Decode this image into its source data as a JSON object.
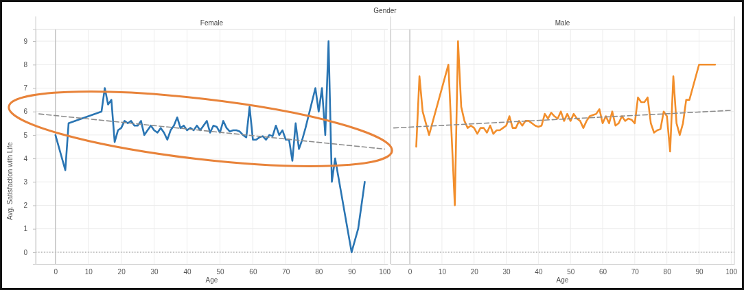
{
  "chart_data": [
    {
      "type": "line",
      "title": "Gender",
      "subtitle": "Female",
      "xlabel": "Age",
      "ylabel": "Avg. Satisfaction with Life",
      "xlim": [
        -6,
        101
      ],
      "xticks": [
        0,
        10,
        20,
        30,
        40,
        50,
        60,
        70,
        80,
        90,
        100
      ],
      "ylim": [
        -0.5,
        9.5
      ],
      "yticks": [
        0,
        1,
        2,
        3,
        4,
        5,
        6,
        7,
        8,
        9
      ],
      "grid": true,
      "marker": "none",
      "ref_lines": [
        {
          "axis": "y",
          "value": 0,
          "line_style": "dotted",
          "color": "#999999"
        },
        {
          "axis": "x",
          "value": 0,
          "line_style": "solid",
          "color": "#bbbbbb"
        }
      ],
      "series": [
        {
          "color": "#2a75b3",
          "line_style": "solid",
          "x": [
            0,
            3,
            4,
            14,
            15,
            16,
            17,
            18,
            19,
            20,
            21,
            22,
            23,
            24,
            25,
            26,
            27,
            28,
            29,
            30,
            31,
            32,
            33,
            34,
            35,
            36,
            37,
            38,
            39,
            40,
            41,
            42,
            43,
            44,
            45,
            46,
            47,
            48,
            49,
            50,
            51,
            52,
            53,
            54,
            55,
            56,
            57,
            58,
            59,
            60,
            61,
            62,
            63,
            64,
            65,
            66,
            67,
            68,
            69,
            70,
            71,
            72,
            73,
            74,
            75,
            76,
            79,
            80,
            81,
            82,
            83,
            84,
            85,
            90,
            92,
            94
          ],
          "values": [
            5.0,
            3.5,
            5.5,
            6.0,
            7.0,
            6.3,
            6.5,
            4.7,
            5.2,
            5.3,
            5.6,
            5.5,
            5.6,
            5.4,
            5.4,
            5.6,
            5.0,
            5.2,
            5.4,
            5.2,
            5.1,
            5.3,
            5.1,
            4.8,
            5.2,
            5.4,
            5.75,
            5.3,
            5.4,
            5.2,
            5.3,
            5.2,
            5.4,
            5.2,
            5.4,
            5.6,
            5.1,
            5.4,
            5.35,
            5.1,
            5.6,
            5.3,
            5.15,
            5.2,
            5.2,
            5.15,
            5.0,
            4.9,
            6.2,
            4.8,
            4.8,
            4.9,
            4.95,
            4.8,
            5.0,
            4.95,
            5.4,
            5.0,
            5.2,
            4.8,
            4.8,
            3.9,
            5.5,
            4.4,
            4.8,
            5.3,
            7.0,
            6.0,
            7.0,
            5.0,
            9.0,
            3.0,
            4.0,
            0,
            1.0,
            3.0
          ]
        },
        {
          "type": "line",
          "color": "#8c8c8c",
          "line_style": "dashed",
          "x": [
            -5,
            100
          ],
          "values": [
            5.9,
            4.4
          ]
        }
      ]
    },
    {
      "type": "line",
      "subtitle": "Male",
      "xlabel": "Age",
      "xlim": [
        -6,
        101
      ],
      "xticks": [
        0,
        10,
        20,
        30,
        40,
        50,
        60,
        70,
        80,
        90,
        100
      ],
      "ylim": [
        -0.5,
        9.5
      ],
      "yticks": [
        0,
        1,
        2,
        3,
        4,
        5,
        6,
        7,
        8,
        9
      ],
      "tick_labels": "x",
      "grid": true,
      "marker": "none",
      "ref_lines": [
        {
          "axis": "y",
          "value": 0,
          "line_style": "dotted",
          "color": "#999999"
        },
        {
          "axis": "x",
          "value": 0,
          "line_style": "solid",
          "color": "#bbbbbb"
        }
      ],
      "series": [
        {
          "color": "#f28e2b",
          "line_style": "solid",
          "x": [
            2,
            3,
            4,
            6,
            12,
            14,
            15,
            16,
            17,
            18,
            19,
            20,
            21,
            22,
            23,
            24,
            25,
            26,
            27,
            28,
            29,
            30,
            31,
            32,
            33,
            34,
            35,
            36,
            37,
            38,
            39,
            40,
            41,
            42,
            43,
            44,
            45,
            46,
            47,
            48,
            49,
            50,
            51,
            52,
            53,
            54,
            55,
            56,
            57,
            58,
            59,
            60,
            61,
            62,
            63,
            64,
            65,
            66,
            67,
            68,
            69,
            70,
            71,
            72,
            73,
            74,
            75,
            76,
            77,
            78,
            79,
            80,
            81,
            82,
            83,
            84,
            85,
            86,
            87,
            90,
            95
          ],
          "values": [
            4.5,
            7.5,
            6.0,
            5.0,
            8.0,
            2.0,
            9.0,
            6.2,
            5.6,
            5.3,
            5.4,
            5.3,
            5.05,
            5.3,
            5.3,
            5.1,
            5.4,
            5.05,
            5.2,
            5.2,
            5.3,
            5.4,
            5.8,
            5.3,
            5.3,
            5.6,
            5.4,
            5.6,
            5.6,
            5.5,
            5.4,
            5.35,
            5.4,
            5.9,
            5.7,
            5.95,
            5.8,
            5.7,
            6.0,
            5.6,
            5.9,
            5.6,
            5.9,
            5.7,
            5.6,
            5.3,
            5.6,
            5.8,
            5.85,
            5.9,
            6.1,
            5.5,
            5.8,
            5.5,
            6.0,
            5.4,
            5.5,
            5.8,
            5.6,
            5.7,
            5.65,
            5.5,
            6.6,
            6.4,
            6.4,
            6.6,
            5.5,
            5.1,
            5.2,
            5.25,
            6.0,
            5.8,
            4.3,
            7.5,
            5.5,
            5.0,
            5.5,
            6.5,
            6.5,
            8.0,
            8.0
          ]
        },
        {
          "type": "line",
          "color": "#8c8c8c",
          "line_style": "dashed",
          "x": [
            -5,
            100
          ],
          "values": [
            5.3,
            6.05
          ]
        }
      ]
    }
  ]
}
